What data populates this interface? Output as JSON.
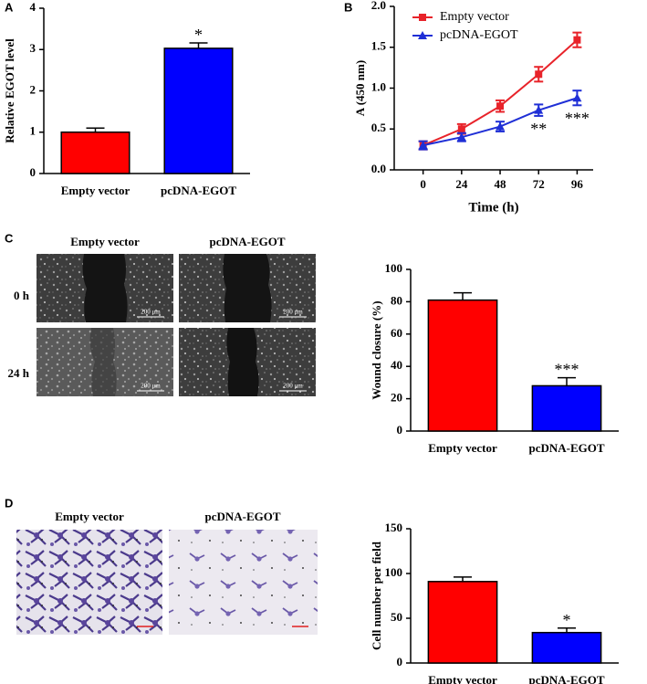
{
  "panel_labels": [
    "A",
    "B",
    "C",
    "D"
  ],
  "wound_healing_images": {
    "columns": [
      "Empty vector",
      "pcDNA-EGOT"
    ],
    "rows": [
      "0 h",
      "24 h"
    ],
    "scale_bar": "200 μm"
  },
  "transwell_images": {
    "columns": [
      "Empty vector",
      "pcDNA-EGOT"
    ]
  },
  "chart_data": [
    {
      "type": "bar",
      "ylabel": "Relative EGOT level",
      "categories": [
        "Empty vector",
        "pcDNA-EGOT"
      ],
      "values": [
        1.0,
        3.03
      ],
      "errors": [
        0.1,
        0.13
      ],
      "colors": [
        "#ff0000",
        "#0000ff"
      ],
      "significance": [
        null,
        "*"
      ],
      "ylim": [
        0,
        4
      ],
      "yticks": [
        0,
        1,
        2,
        3,
        4
      ]
    },
    {
      "type": "line",
      "xlabel": "Time (h)",
      "ylabel": "A (450 nm)",
      "x": [
        0,
        24,
        48,
        72,
        96
      ],
      "series": [
        {
          "name": "Empty vector",
          "color": "#e8232a",
          "marker": "square",
          "values": [
            0.3,
            0.5,
            0.78,
            1.17,
            1.59
          ],
          "errors": [
            0.05,
            0.06,
            0.07,
            0.09,
            0.09
          ]
        },
        {
          "name": "pcDNA-EGOT",
          "color": "#1f2fd6",
          "marker": "triangle",
          "values": [
            0.3,
            0.4,
            0.53,
            0.73,
            0.88
          ],
          "errors": [
            0.05,
            0.05,
            0.06,
            0.07,
            0.09
          ],
          "significance": [
            null,
            null,
            null,
            "**",
            "***"
          ]
        }
      ],
      "xlim": [
        -18,
        106
      ],
      "xticks": [
        0,
        24,
        48,
        72,
        96
      ],
      "ylim": [
        0,
        2
      ],
      "yticks": [
        {
          "value": 0,
          "label": "0.0"
        },
        0.5,
        {
          "value": 1,
          "label": "1.0"
        },
        1.5,
        {
          "value": 2,
          "label": "2.0"
        }
      ],
      "legend": "upper left"
    },
    {
      "type": "bar",
      "ylabel": "Wound closure (%)",
      "categories": [
        "Empty vector",
        "pcDNA-EGOT"
      ],
      "values": [
        81,
        28
      ],
      "errors": [
        4.5,
        5
      ],
      "colors": [
        "#ff0000",
        "#0000ff"
      ],
      "significance": [
        null,
        "***"
      ],
      "ylim": [
        0,
        100
      ],
      "yticks": [
        0,
        20,
        40,
        60,
        80,
        100
      ]
    },
    {
      "type": "bar",
      "ylabel": "Cell number per field",
      "categories": [
        "Empty vector",
        "pcDNA-EGOT"
      ],
      "values": [
        91,
        34
      ],
      "errors": [
        5,
        5
      ],
      "colors": [
        "#ff0000",
        "#0000ff"
      ],
      "significance": [
        null,
        "*"
      ],
      "ylim": [
        0,
        150
      ],
      "yticks": [
        0,
        50,
        100,
        150
      ]
    }
  ]
}
